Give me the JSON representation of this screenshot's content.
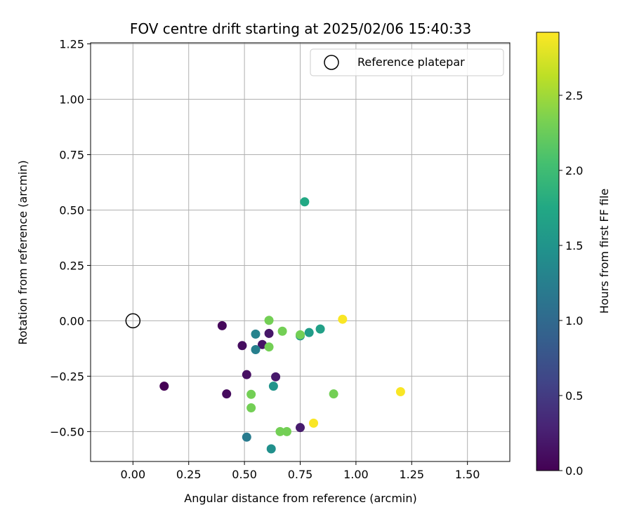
{
  "chart_data": {
    "type": "scatter",
    "title": "FOV centre drift starting at 2025/02/06 15:40:33",
    "xlabel": "Angular distance from reference (arcmin)",
    "ylabel": "Rotation from reference (arcmin)",
    "xlim": [
      -0.19,
      1.69
    ],
    "ylim": [
      -0.635,
      1.255
    ],
    "xticks": [
      "0.00",
      "0.25",
      "0.50",
      "0.75",
      "1.00",
      "1.25",
      "1.50"
    ],
    "yticks": [
      "−0.50",
      "−0.25",
      "0.00",
      "0.25",
      "0.50",
      "0.75",
      "1.00",
      "1.25"
    ],
    "grid": true,
    "legend": {
      "placement": "top-right",
      "label": "Reference platepar"
    },
    "reference": {
      "x": 0.0,
      "y": 0.0
    },
    "colorbar": {
      "label": "Hours from first FF file",
      "colormap": "viridis",
      "range": [
        0.0,
        2.92
      ],
      "ticks": [
        "0.0",
        "0.5",
        "1.0",
        "1.5",
        "2.0",
        "2.5"
      ]
    },
    "points": [
      {
        "x": 0.14,
        "y": -0.295,
        "hours": 0.0
      },
      {
        "x": 0.4,
        "y": -0.022,
        "hours": 0.05
      },
      {
        "x": 0.42,
        "y": -0.33,
        "hours": 0.08
      },
      {
        "x": 0.49,
        "y": -0.112,
        "hours": 0.1
      },
      {
        "x": 0.51,
        "y": -0.243,
        "hours": 0.12
      },
      {
        "x": 0.58,
        "y": -0.107,
        "hours": 0.15
      },
      {
        "x": 0.61,
        "y": -0.057,
        "hours": 0.18
      },
      {
        "x": 0.64,
        "y": -0.253,
        "hours": 0.2
      },
      {
        "x": 0.75,
        "y": -0.482,
        "hours": 0.22
      },
      {
        "x": 0.51,
        "y": -0.525,
        "hours": 1.2
      },
      {
        "x": 0.55,
        "y": -0.13,
        "hours": 1.25
      },
      {
        "x": 0.55,
        "y": -0.06,
        "hours": 1.3
      },
      {
        "x": 0.62,
        "y": -0.578,
        "hours": 1.45
      },
      {
        "x": 0.63,
        "y": -0.295,
        "hours": 1.5
      },
      {
        "x": 0.75,
        "y": -0.068,
        "hours": 1.55
      },
      {
        "x": 0.79,
        "y": -0.053,
        "hours": 1.6
      },
      {
        "x": 0.84,
        "y": -0.037,
        "hours": 1.65
      },
      {
        "x": 0.77,
        "y": 0.537,
        "hours": 1.75
      },
      {
        "x": 0.61,
        "y": 0.002,
        "hours": 2.3
      },
      {
        "x": 0.61,
        "y": -0.118,
        "hours": 2.3
      },
      {
        "x": 0.67,
        "y": -0.047,
        "hours": 2.3
      },
      {
        "x": 0.75,
        "y": -0.063,
        "hours": 2.3
      },
      {
        "x": 0.53,
        "y": -0.332,
        "hours": 2.3
      },
      {
        "x": 0.53,
        "y": -0.393,
        "hours": 2.3
      },
      {
        "x": 0.66,
        "y": -0.5,
        "hours": 2.3
      },
      {
        "x": 0.69,
        "y": -0.5,
        "hours": 2.3
      },
      {
        "x": 0.9,
        "y": -0.33,
        "hours": 2.3
      },
      {
        "x": 0.81,
        "y": -0.462,
        "hours": 2.9
      },
      {
        "x": 0.94,
        "y": 0.007,
        "hours": 2.9
      },
      {
        "x": 1.2,
        "y": -0.32,
        "hours": 2.9
      }
    ]
  }
}
